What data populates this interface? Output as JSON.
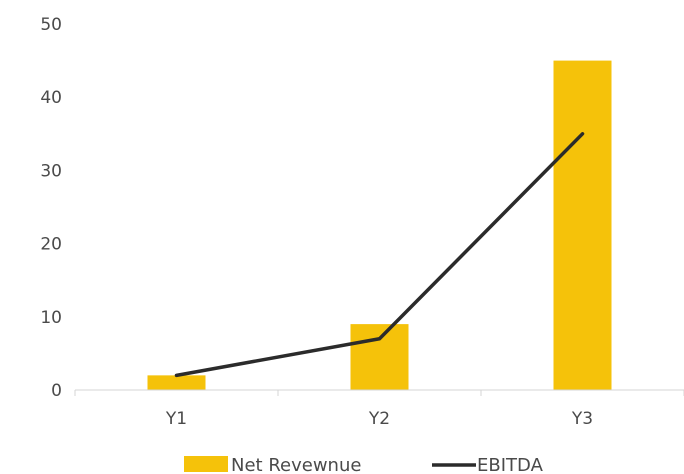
{
  "chart_data": {
    "type": "bar",
    "title": "",
    "xlabel": "",
    "ylabel": "",
    "categories": [
      "Y1",
      "Y2",
      "Y3"
    ],
    "ylim": [
      0,
      50
    ],
    "yticks": [
      0,
      10,
      20,
      30,
      40,
      50
    ],
    "grid": false,
    "legend_position": "bottom",
    "series": [
      {
        "name": "Net Revewnue",
        "type": "bar",
        "color": "#F5C20A",
        "values": [
          2,
          9,
          45
        ]
      },
      {
        "name": "EBITDA",
        "type": "line",
        "color": "#2b2b2b",
        "values": [
          2,
          7,
          35
        ]
      }
    ]
  }
}
